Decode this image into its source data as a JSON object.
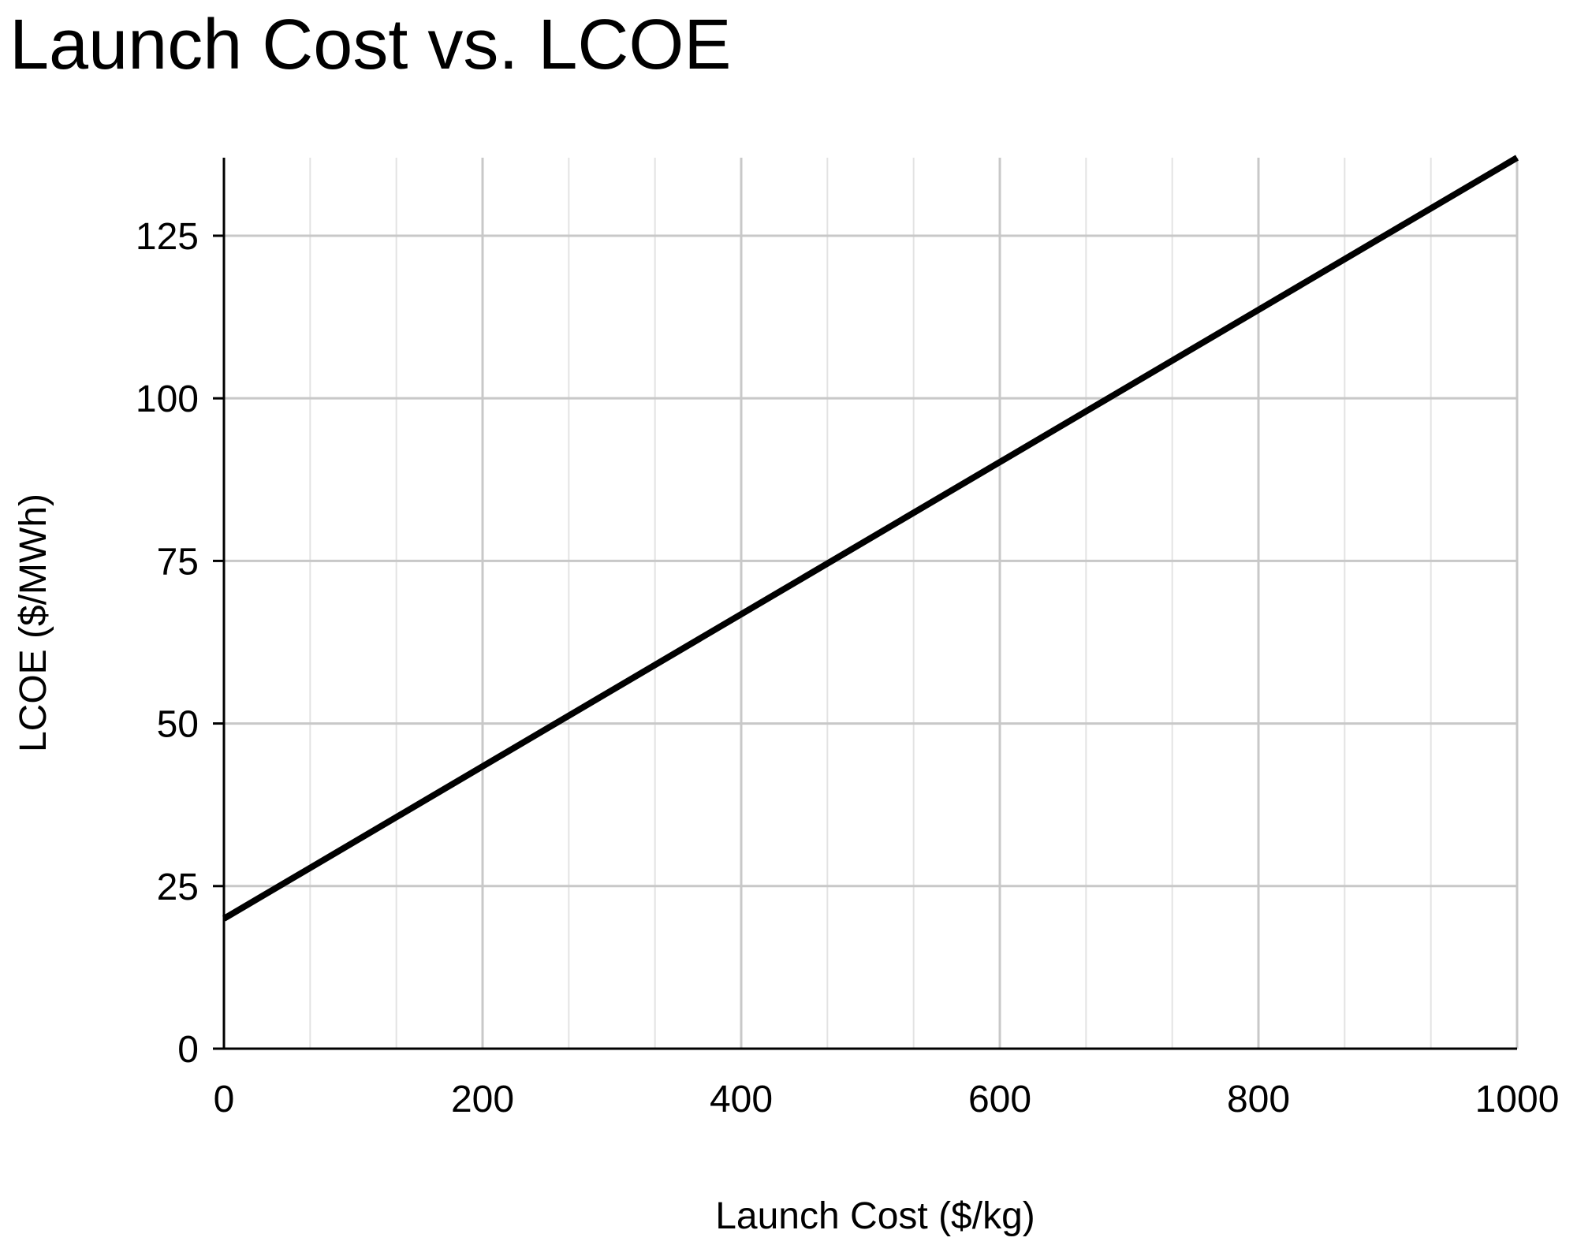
{
  "chart_data": {
    "type": "line",
    "title": "Launch Cost vs. LCOE",
    "xlabel": "Launch Cost ($/kg)",
    "ylabel": "LCOE ($/MWh)",
    "xlim": [
      0,
      1000
    ],
    "ylim": [
      0,
      137
    ],
    "xticks": [
      0,
      200,
      400,
      600,
      800,
      1000
    ],
    "yticks": [
      0,
      25,
      50,
      75,
      100,
      125
    ],
    "grid": true,
    "minor_grid": true,
    "legend": "none",
    "series": [
      {
        "x": [
          0,
          1000
        ],
        "y": [
          20,
          137
        ],
        "color": "#000000"
      }
    ]
  }
}
